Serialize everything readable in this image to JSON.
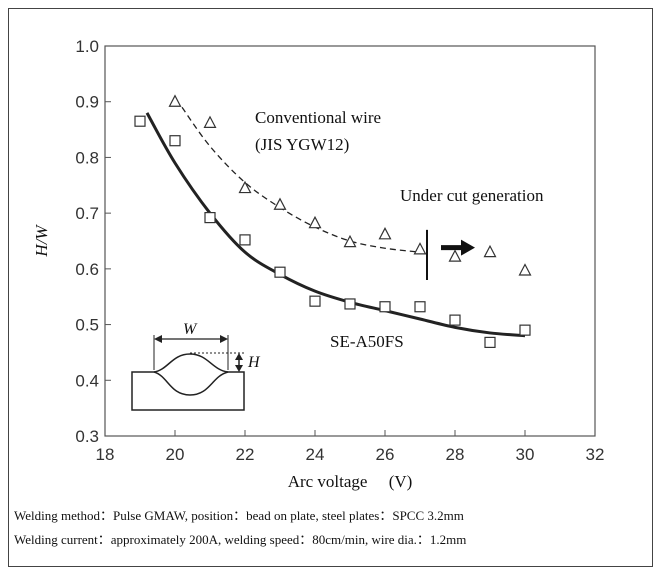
{
  "chart_data": {
    "type": "scatter",
    "xlabel": "Arc voltage  (V)",
    "ylabel": "H/W",
    "xlim": [
      18,
      32
    ],
    "ylim": [
      0.3,
      1.0
    ],
    "xticks": [
      "18",
      "20",
      "22",
      "24",
      "26",
      "28",
      "30",
      "32"
    ],
    "yticks": [
      "0.3",
      "0.4",
      "0.5",
      "0.6",
      "0.7",
      "0.8",
      "0.9",
      "1.0"
    ],
    "series": [
      {
        "name": "SE-A50FS",
        "marker": "square",
        "x": [
          19,
          20,
          21,
          22,
          23,
          24,
          25,
          26,
          27,
          28,
          29,
          30
        ],
        "y": [
          0.865,
          0.83,
          0.692,
          0.652,
          0.594,
          0.542,
          0.537,
          0.532,
          0.532,
          0.508,
          0.468,
          0.49
        ],
        "fit_line": {
          "style": "solid",
          "x": [
            19.2,
            20,
            21,
            22,
            23,
            24,
            25,
            26,
            27,
            28,
            29,
            30
          ],
          "y": [
            0.88,
            0.79,
            0.7,
            0.63,
            0.59,
            0.56,
            0.54,
            0.525,
            0.51,
            0.495,
            0.485,
            0.48
          ]
        }
      },
      {
        "name": "Conventional wire (JIS YGW12)",
        "label_lines": [
          "Conventional wire",
          "(JIS YGW12)"
        ],
        "marker": "triangle",
        "x": [
          20,
          21,
          22,
          23,
          24,
          25,
          26,
          27,
          28,
          29,
          30
        ],
        "y": [
          0.9,
          0.862,
          0.745,
          0.715,
          0.682,
          0.648,
          0.662,
          0.635,
          0.622,
          0.63,
          0.597
        ],
        "fit_line": {
          "style": "dashed",
          "x": [
            20.2,
            21,
            22,
            23,
            24,
            25,
            26,
            27
          ],
          "y": [
            0.89,
            0.82,
            0.755,
            0.71,
            0.675,
            0.65,
            0.637,
            0.63
          ]
        }
      }
    ],
    "annotations": {
      "under_cut": {
        "text": "Under cut generation",
        "boundary_x": 27.2,
        "boundary_y": [
          0.58,
          0.67
        ],
        "arrow_y": 0.638
      },
      "bead_label_w": "W",
      "bead_label_h": "H"
    }
  },
  "caption": {
    "line1": "Welding method：Pulse GMAW, position：bead on plate, steel plates：SPCC 3.2mm",
    "line2": "Welding current：approximately 200A, welding speed：80cm/min, wire dia.：1.2mm"
  }
}
